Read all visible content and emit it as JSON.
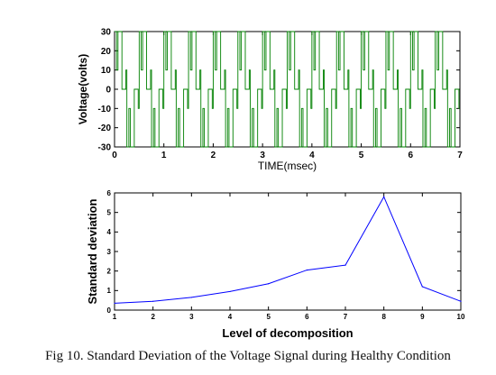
{
  "caption": "Fig 10. Standard Deviation of the Voltage Signal during Healthy Condition",
  "chart_data": [
    {
      "type": "line",
      "title": "",
      "xlabel": "TIME(msec)",
      "ylabel": "Voltage(volts)",
      "xlim": [
        0,
        7
      ],
      "ylim": [
        -30,
        30
      ],
      "xticks": [
        0,
        1,
        2,
        3,
        4,
        5,
        6,
        7
      ],
      "yticks": [
        -30,
        -20,
        -10,
        0,
        10,
        20,
        30
      ],
      "grid": false,
      "color": "#008000",
      "signal": {
        "description_of_waveform": "PWM voltage switching between about +30 and -30 volts with short pulses near +10/-10 volts and 0 V segments",
        "period_msec": 0.5,
        "cycles": 14,
        "levels": [
          30,
          10,
          0,
          -10,
          -30
        ]
      }
    },
    {
      "type": "line",
      "title": "",
      "xlabel": "Level of decomposition",
      "ylabel": "Standard deviation",
      "xlim": [
        1,
        10
      ],
      "ylim": [
        0,
        6
      ],
      "xticks": [
        1,
        2,
        3,
        4,
        5,
        6,
        7,
        8,
        9,
        10
      ],
      "yticks": [
        0,
        1,
        2,
        3,
        4,
        5,
        6
      ],
      "grid": false,
      "color": "#0000ff",
      "x": [
        1,
        2,
        3,
        4,
        5,
        6,
        7,
        8,
        9,
        10
      ],
      "y": [
        0.35,
        0.45,
        0.65,
        0.95,
        1.35,
        2.05,
        2.3,
        5.8,
        1.2,
        0.45
      ]
    }
  ]
}
